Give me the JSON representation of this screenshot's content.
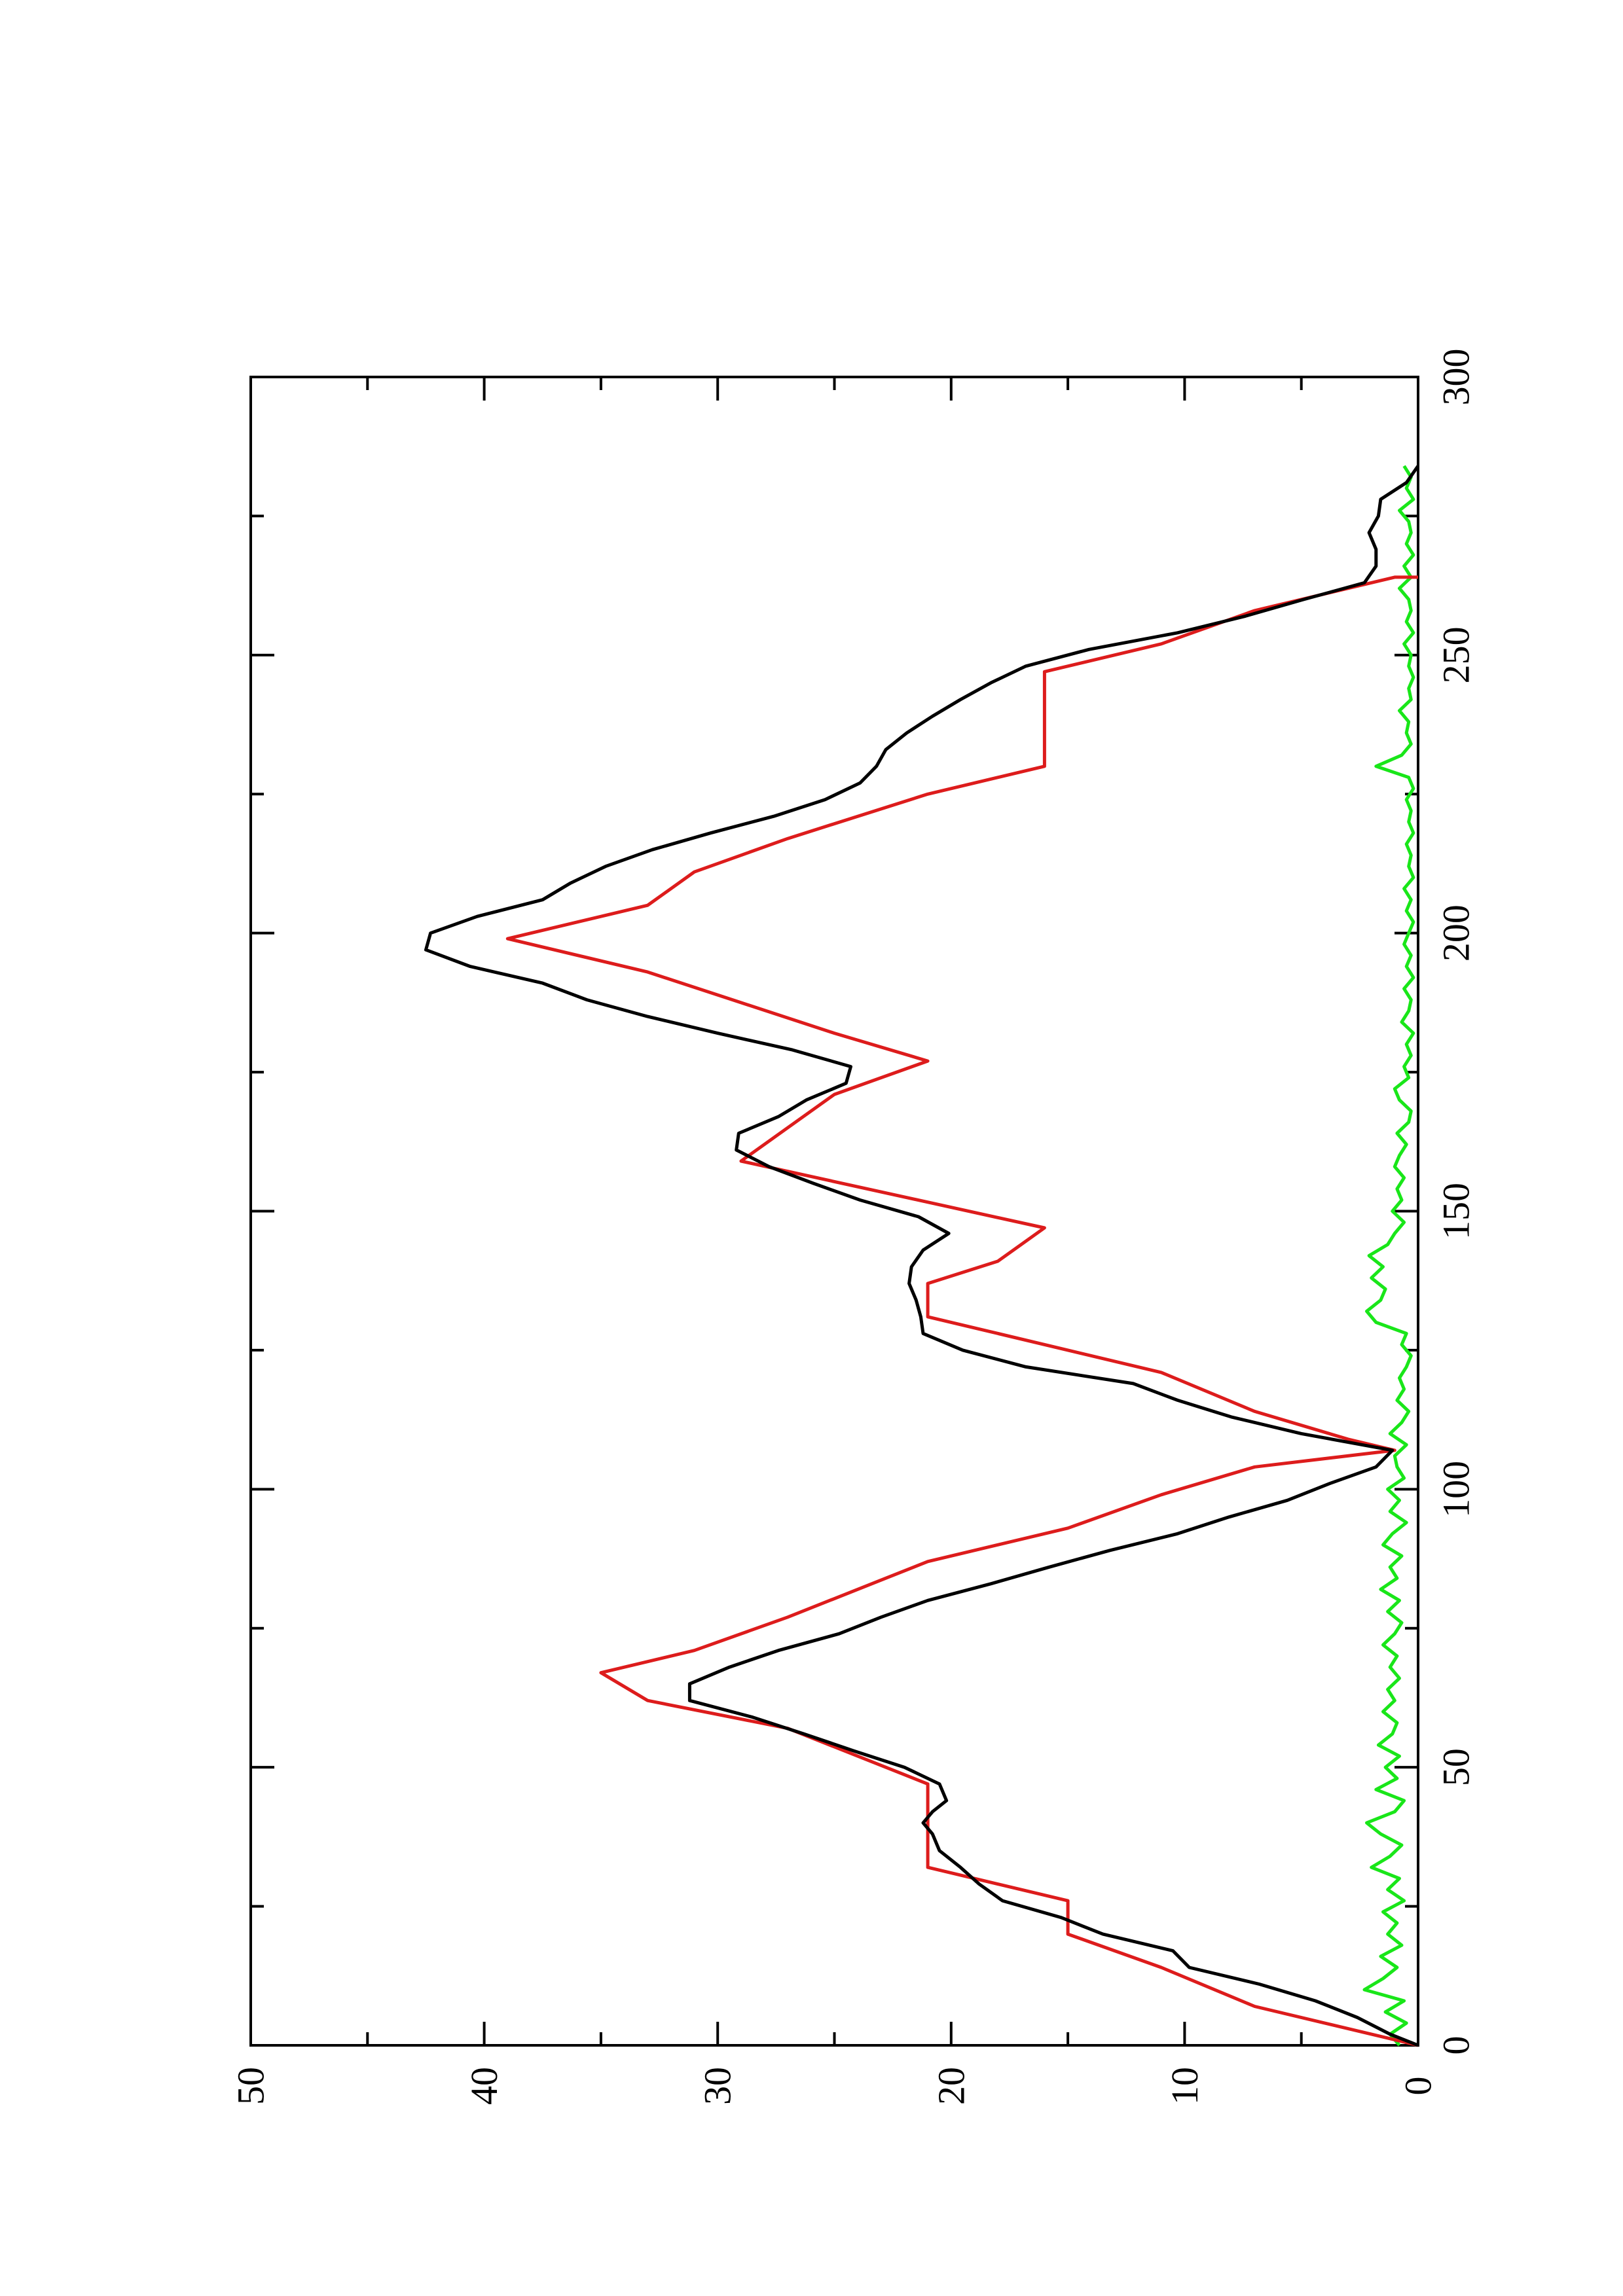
{
  "chart_data": {
    "type": "line",
    "title": "",
    "xlabel": "",
    "ylabel": "",
    "orientation": "rotated 90 degrees counter-clockwise (x axis runs upward along the right edge, y axis runs leftward along the bottom edge)",
    "xlim": [
      0,
      300
    ],
    "ylim": [
      0,
      50
    ],
    "x_ticks": [
      0,
      50,
      100,
      150,
      200,
      250,
      300
    ],
    "y_ticks": [
      0,
      10,
      20,
      30,
      40,
      50
    ],
    "x_tick_labels": [
      "0",
      "50",
      "100",
      "150",
      "200",
      "250",
      "300"
    ],
    "y_tick_labels": [
      "0",
      "10",
      "20",
      "30",
      "40",
      "50"
    ],
    "grid": false,
    "legend": "none",
    "series": [
      {
        "color": "#000000",
        "style": "smooth",
        "x": [
          0,
          2,
          5,
          8,
          11,
          14,
          17,
          20,
          23,
          26,
          29,
          32,
          35,
          38,
          40,
          42,
          44,
          47,
          50,
          53,
          56,
          59,
          62,
          65,
          68,
          71,
          74,
          77,
          80,
          83,
          86,
          89,
          92,
          95,
          98,
          101,
          104,
          107,
          110,
          113,
          116,
          119,
          122,
          125,
          128,
          131,
          134,
          137,
          140,
          143,
          146,
          149,
          152,
          155,
          158,
          161,
          164,
          167,
          170,
          173,
          176,
          179,
          182,
          185,
          188,
          191,
          194,
          197,
          200,
          203,
          206,
          209,
          212,
          215,
          218,
          221,
          224,
          227,
          230,
          233,
          236,
          239,
          242,
          245,
          248,
          251,
          254,
          257,
          260,
          263,
          266,
          269,
          272,
          275,
          278,
          281,
          284
        ],
        "y": [
          0,
          1.2,
          2.6,
          4.4,
          6.8,
          9.8,
          10.5,
          13.5,
          15.3,
          17.8,
          18.8,
          19.6,
          20.5,
          20.8,
          21.2,
          20.8,
          20.2,
          20.5,
          22.0,
          24.2,
          26.3,
          28.5,
          31.2,
          31.2,
          29.5,
          27.4,
          24.8,
          23.0,
          21.0,
          18.3,
          15.8,
          13.2,
          10.3,
          8.1,
          5.6,
          3.8,
          1.8,
          1.1,
          5.0,
          8.0,
          10.3,
          12.2,
          16.8,
          19.5,
          21.2,
          21.3,
          21.5,
          21.8,
          21.7,
          21.2,
          20.1,
          21.4,
          23.9,
          25.9,
          27.8,
          29.2,
          29.1,
          27.4,
          26.2,
          24.5,
          24.3,
          26.8,
          30.0,
          33.0,
          35.6,
          37.5,
          40.6,
          42.5,
          42.3,
          40.3,
          37.5,
          36.3,
          34.8,
          32.8,
          30.3,
          27.6,
          25.4,
          23.9,
          23.2,
          22.8,
          21.9,
          20.8,
          19.6,
          18.3,
          16.8,
          14.1,
          10.3,
          7.4,
          4.9,
          2.3,
          1.8,
          1.8,
          2.1,
          1.7,
          1.6,
          0.5,
          0
        ]
      },
      {
        "color": "#dd1c1c",
        "style": "stepped",
        "x": [
          0,
          7,
          7,
          14,
          14,
          20,
          20,
          26,
          26,
          32,
          32,
          47,
          47,
          57,
          57,
          62,
          62,
          67,
          67,
          71,
          71,
          77,
          77,
          87,
          87,
          93,
          93,
          99,
          99,
          104,
          104,
          107,
          107,
          109,
          109,
          114,
          114,
          121,
          121,
          125,
          125,
          131,
          131,
          137,
          137,
          141,
          141,
          147,
          147,
          159,
          159,
          165,
          165,
          171,
          171,
          177,
          177,
          182,
          182,
          193,
          193,
          199,
          199,
          205,
          205,
          211,
          211,
          217,
          217,
          225,
          225,
          230,
          230,
          247,
          247,
          252,
          252,
          258,
          258,
          264,
          264
        ],
        "y": [
          0,
          7,
          7,
          11,
          11,
          15,
          15,
          15,
          15,
          21,
          21,
          21,
          21,
          27,
          27,
          33,
          33,
          35,
          35,
          31,
          31,
          27,
          27,
          21,
          21,
          15,
          15,
          11,
          11,
          7,
          7,
          1,
          1,
          3,
          3,
          7,
          7,
          11,
          11,
          15,
          15,
          21,
          21,
          21,
          21,
          18,
          18,
          16,
          16,
          29,
          29,
          27,
          27,
          25,
          25,
          21,
          21,
          25,
          25,
          33,
          33,
          39,
          39,
          33,
          33,
          31,
          31,
          27,
          27,
          21,
          21,
          16,
          16,
          16,
          16,
          11,
          11,
          7,
          7,
          1,
          0
        ]
      },
      {
        "color": "#19e619",
        "style": "noisy",
        "x": [
          0,
          2,
          4,
          6,
          8,
          10,
          12,
          14,
          16,
          18,
          20,
          22,
          24,
          26,
          28,
          30,
          32,
          34,
          36,
          38,
          40,
          42,
          44,
          46,
          48,
          50,
          52,
          54,
          56,
          58,
          60,
          62,
          64,
          66,
          68,
          70,
          72,
          74,
          76,
          78,
          80,
          82,
          84,
          86,
          88,
          90,
          92,
          94,
          96,
          98,
          100,
          102,
          104,
          106,
          108,
          110,
          112,
          114,
          116,
          118,
          120,
          122,
          124,
          126,
          128,
          130,
          132,
          134,
          136,
          138,
          140,
          142,
          144,
          146,
          148,
          150,
          152,
          154,
          156,
          158,
          160,
          162,
          164,
          166,
          168,
          170,
          172,
          174,
          176,
          178,
          180,
          182,
          184,
          186,
          188,
          190,
          192,
          194,
          196,
          198,
          200,
          202,
          204,
          206,
          208,
          210,
          212,
          214,
          216,
          218,
          220,
          222,
          224,
          226,
          228,
          230,
          232,
          234,
          236,
          238,
          240,
          242,
          244,
          246,
          248,
          250,
          252,
          254,
          256,
          258,
          260,
          262,
          264,
          266,
          268,
          270,
          272,
          274,
          276,
          278,
          280,
          282,
          284
        ],
        "y": [
          0.8,
          1.2,
          0.5,
          1.4,
          0.6,
          2.3,
          1.5,
          0.9,
          1.6,
          0.7,
          1.3,
          0.9,
          1.5,
          0.6,
          1.3,
          0.8,
          2.0,
          1.2,
          0.7,
          1.6,
          2.2,
          1.0,
          0.6,
          1.8,
          0.9,
          1.4,
          0.8,
          1.7,
          1.1,
          0.9,
          1.5,
          1.0,
          1.3,
          0.8,
          1.2,
          0.9,
          1.5,
          1.0,
          0.7,
          1.3,
          0.8,
          1.6,
          0.9,
          1.2,
          0.7,
          1.5,
          1.1,
          0.5,
          1.2,
          0.8,
          1.3,
          0.6,
          0.9,
          1.0,
          0.5,
          1.2,
          0.7,
          0.4,
          0.9,
          0.6,
          0.8,
          0.5,
          0.3,
          0.7,
          0.5,
          1.8,
          2.2,
          1.6,
          1.4,
          2.0,
          1.5,
          2.1,
          1.3,
          1.0,
          0.6,
          1.1,
          0.7,
          0.9,
          0.6,
          1.0,
          0.8,
          0.5,
          0.9,
          0.4,
          0.3,
          0.8,
          1.0,
          0.4,
          0.6,
          0.3,
          0.5,
          0.2,
          0.7,
          0.4,
          0.3,
          0.6,
          0.2,
          0.5,
          0.3,
          0.6,
          0.4,
          0.2,
          0.5,
          0.3,
          0.6,
          0.2,
          0.4,
          0.3,
          0.5,
          0.2,
          0.4,
          0.3,
          0.5,
          0.2,
          0.4,
          1.8,
          0.7,
          0.3,
          0.5,
          0.4,
          0.8,
          0.3,
          0.4,
          0.2,
          0.4,
          0.3,
          0.6,
          0.2,
          0.5,
          0.3,
          0.4,
          0.8,
          0.3,
          0.6,
          0.2,
          0.5,
          0.3,
          0.4,
          0.8,
          0.2,
          0.5,
          0.3,
          0.6
        ]
      }
    ]
  }
}
